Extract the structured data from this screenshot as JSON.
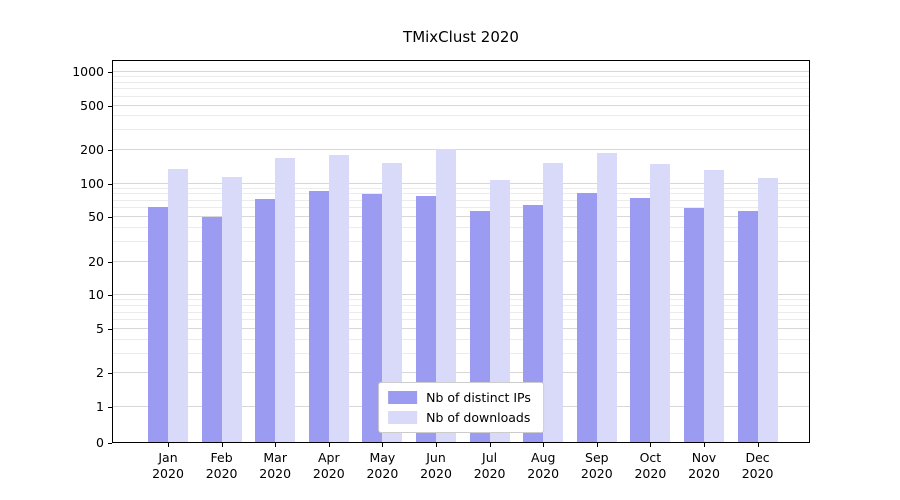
{
  "chart_data": {
    "type": "bar",
    "title": "TMixClust 2020",
    "categories": [
      "Jan",
      "Feb",
      "Mar",
      "Apr",
      "May",
      "Jun",
      "Jul",
      "Aug",
      "Sep",
      "Oct",
      "Nov",
      "Dec"
    ],
    "x_year_label": "2020",
    "series": [
      {
        "name": "Nb of distinct IPs",
        "color": "#9b9bf2",
        "values": [
          62,
          50,
          73,
          85,
          80,
          78,
          57,
          65,
          82,
          74,
          61,
          57
        ]
      },
      {
        "name": "Nb of downloads",
        "color": "#d9d9f9",
        "values": [
          135,
          115,
          170,
          182,
          152,
          205,
          108,
          152,
          188,
          150,
          132,
          112
        ]
      }
    ],
    "yscale": "symlog",
    "yticks": [
      0,
      1,
      2,
      5,
      10,
      20,
      50,
      100,
      200,
      500,
      1000
    ],
    "ylim": [
      0,
      1000
    ],
    "grid": true,
    "legend_position": "bottom-center"
  }
}
